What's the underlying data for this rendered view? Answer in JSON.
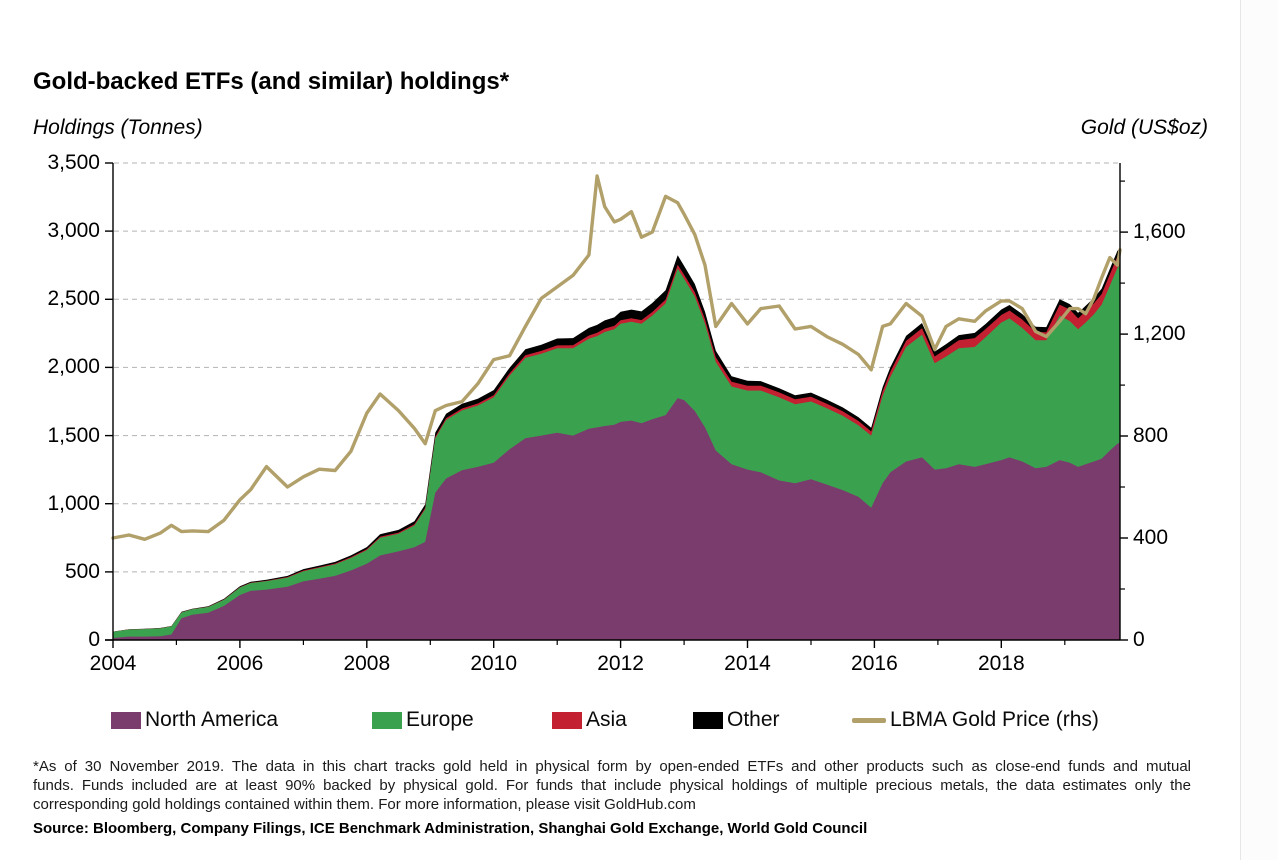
{
  "header": {
    "title": "Gold-backed ETFs (and similar) holdings*"
  },
  "notes": {
    "lines": [
      "*As of 30 November 2019. The data in this chart tracks gold held in physical form by open-ended ETFs and other products such as close-end funds and mutual",
      "funds. Funds included are at least 90% backed by physical gold. For funds that include physical holdings of multiple precious metals, the data estimates only the",
      "corresponding gold holdings contained within them. For more information, please visit GoldHub.com"
    ],
    "source": "Source: Bloomberg, Company Filings, ICE Benchmark Administration,  Shanghai Gold Exchange, World Gold Council"
  },
  "chart_data": {
    "type": "area",
    "subtype": "stacked-area-with-secondary-line",
    "title": "Gold-backed ETFs (and similar) holdings*",
    "legend_position": "bottom",
    "grid": {
      "horizontal": "dashed",
      "color": "#b3b3b3"
    },
    "x": [
      2004.0,
      2004.25,
      2004.5,
      2004.75,
      2004.92,
      2005.08,
      2005.25,
      2005.5,
      2005.75,
      2006.0,
      2006.17,
      2006.42,
      2006.75,
      2007.0,
      2007.25,
      2007.5,
      2007.75,
      2008.0,
      2008.21,
      2008.5,
      2008.75,
      2008.92,
      2009.08,
      2009.25,
      2009.5,
      2009.75,
      2010.0,
      2010.25,
      2010.5,
      2010.75,
      2011.0,
      2011.25,
      2011.5,
      2011.63,
      2011.75,
      2011.9,
      2012.0,
      2012.17,
      2012.33,
      2012.5,
      2012.71,
      2012.9,
      2013.0,
      2013.17,
      2013.33,
      2013.5,
      2013.75,
      2014.0,
      2014.21,
      2014.5,
      2014.75,
      2015.0,
      2015.25,
      2015.5,
      2015.75,
      2015.95,
      2016.13,
      2016.25,
      2016.5,
      2016.75,
      2016.95,
      2017.13,
      2017.33,
      2017.58,
      2017.75,
      2018.0,
      2018.13,
      2018.33,
      2018.54,
      2018.71,
      2018.92,
      2019.08,
      2019.21,
      2019.33,
      2019.46,
      2019.58,
      2019.71,
      2019.83,
      2019.92
    ],
    "stack_series": [
      {
        "name": "North America",
        "color": "#7A3C6C",
        "unit": "tonnes",
        "values": [
          15,
          25,
          25,
          28,
          40,
          160,
          185,
          200,
          250,
          330,
          360,
          370,
          390,
          430,
          450,
          470,
          510,
          560,
          620,
          650,
          680,
          720,
          1080,
          1185,
          1245,
          1270,
          1300,
          1400,
          1480,
          1500,
          1520,
          1500,
          1550,
          1560,
          1570,
          1580,
          1600,
          1610,
          1590,
          1620,
          1650,
          1775,
          1760,
          1680,
          1560,
          1390,
          1290,
          1250,
          1230,
          1170,
          1150,
          1180,
          1140,
          1100,
          1050,
          970,
          1150,
          1230,
          1310,
          1340,
          1250,
          1260,
          1290,
          1270,
          1290,
          1320,
          1340,
          1310,
          1260,
          1270,
          1320,
          1300,
          1270,
          1290,
          1310,
          1330,
          1390,
          1440,
          1450
        ]
      },
      {
        "name": "Europe",
        "color": "#3AA24F",
        "unit": "tonnes",
        "values": [
          45,
          52,
          55,
          58,
          60,
          42,
          40,
          42,
          46,
          55,
          58,
          62,
          68,
          75,
          80,
          85,
          92,
          100,
          130,
          130,
          160,
          240,
          400,
          430,
          440,
          450,
          480,
          540,
          590,
          600,
          620,
          640,
          660,
          670,
          690,
          700,
          720,
          725,
          730,
          760,
          820,
          950,
          890,
          840,
          760,
          650,
          570,
          580,
          600,
          610,
          580,
          570,
          560,
          545,
          525,
          530,
          640,
          700,
          840,
          900,
          780,
          820,
          850,
          880,
          930,
          1010,
          1020,
          980,
          940,
          930,
          1060,
          1040,
          1010,
          1040,
          1080,
          1130,
          1210,
          1290,
          1300
        ]
      },
      {
        "name": "Asia",
        "color": "#C32031",
        "unit": "tonnes",
        "values": [
          1,
          1,
          1,
          1,
          1,
          2,
          2,
          2,
          2,
          3,
          3,
          3,
          4,
          5,
          5,
          6,
          6,
          7,
          8,
          8,
          9,
          10,
          12,
          13,
          14,
          15,
          16,
          18,
          20,
          21,
          22,
          23,
          24,
          24,
          25,
          25,
          26,
          26,
          27,
          27,
          28,
          28,
          30,
          32,
          34,
          35,
          35,
          36,
          36,
          37,
          36,
          35,
          34,
          33,
          32,
          30,
          35,
          38,
          45,
          48,
          50,
          55,
          60,
          65,
          60,
          55,
          58,
          62,
          60,
          58,
          80,
          85,
          80,
          82,
          80,
          78,
          82,
          85,
          85
        ]
      },
      {
        "name": "Other",
        "color": "#000000",
        "unit": "tonnes",
        "values": [
          1,
          1,
          2,
          2,
          2,
          3,
          3,
          4,
          4,
          6,
          6,
          7,
          8,
          10,
          11,
          12,
          13,
          15,
          18,
          20,
          22,
          25,
          30,
          32,
          34,
          35,
          38,
          40,
          44,
          46,
          50,
          52,
          56,
          58,
          60,
          62,
          62,
          63,
          64,
          66,
          68,
          70,
          65,
          60,
          55,
          48,
          40,
          36,
          34,
          30,
          30,
          30,
          30,
          29,
          28,
          28,
          30,
          32,
          36,
          38,
          36,
          36,
          37,
          38,
          38,
          40,
          40,
          40,
          38,
          38,
          40,
          40,
          40,
          40,
          40,
          40,
          40,
          40,
          40
        ]
      }
    ],
    "line_series": {
      "name": "LBMA Gold Price (rhs)",
      "color": "#B1A06A",
      "axis": "right",
      "unit": "US$/oz",
      "values": [
        400,
        412,
        395,
        420,
        450,
        425,
        428,
        425,
        470,
        550,
        590,
        680,
        600,
        640,
        670,
        665,
        740,
        890,
        965,
        900,
        830,
        770,
        900,
        920,
        935,
        1005,
        1100,
        1115,
        1230,
        1340,
        1385,
        1430,
        1510,
        1820,
        1700,
        1640,
        1650,
        1680,
        1580,
        1600,
        1740,
        1715,
        1670,
        1590,
        1470,
        1230,
        1320,
        1240,
        1300,
        1310,
        1220,
        1230,
        1190,
        1160,
        1120,
        1060,
        1230,
        1240,
        1320,
        1270,
        1140,
        1230,
        1260,
        1250,
        1290,
        1330,
        1330,
        1300,
        1210,
        1190,
        1250,
        1300,
        1300,
        1280,
        1340,
        1420,
        1500,
        1470,
        1530
      ]
    },
    "left_axis": {
      "title": "Holdings (Tonnes)",
      "range": [
        0,
        3500
      ],
      "tick_values": [
        0,
        500,
        1000,
        1500,
        2000,
        2500,
        3000,
        3500
      ],
      "tick_labels": [
        "0",
        "500",
        "1,000",
        "1,500",
        "2,000",
        "2,500",
        "3,000",
        "3,500"
      ]
    },
    "right_axis": {
      "title": "Gold (US$oz)",
      "range": [
        0,
        1871
      ],
      "tick_values": [
        0,
        400,
        800,
        1200,
        1600
      ],
      "tick_labels": [
        "0",
        "400",
        "800",
        "1,200",
        "1,600"
      ],
      "minor_tick_values": [
        200,
        600,
        1000,
        1400,
        1800
      ]
    },
    "x_axis": {
      "range": [
        2004,
        2019.92
      ],
      "tick_values": [
        2004,
        2006,
        2008,
        2010,
        2012,
        2014,
        2016,
        2018
      ],
      "tick_labels": [
        "2004",
        "2006",
        "2008",
        "2010",
        "2012",
        "2014",
        "2016",
        "2018"
      ],
      "minor_tick_values": [
        2005,
        2007,
        2009,
        2011,
        2013,
        2015,
        2017,
        2019
      ]
    }
  }
}
